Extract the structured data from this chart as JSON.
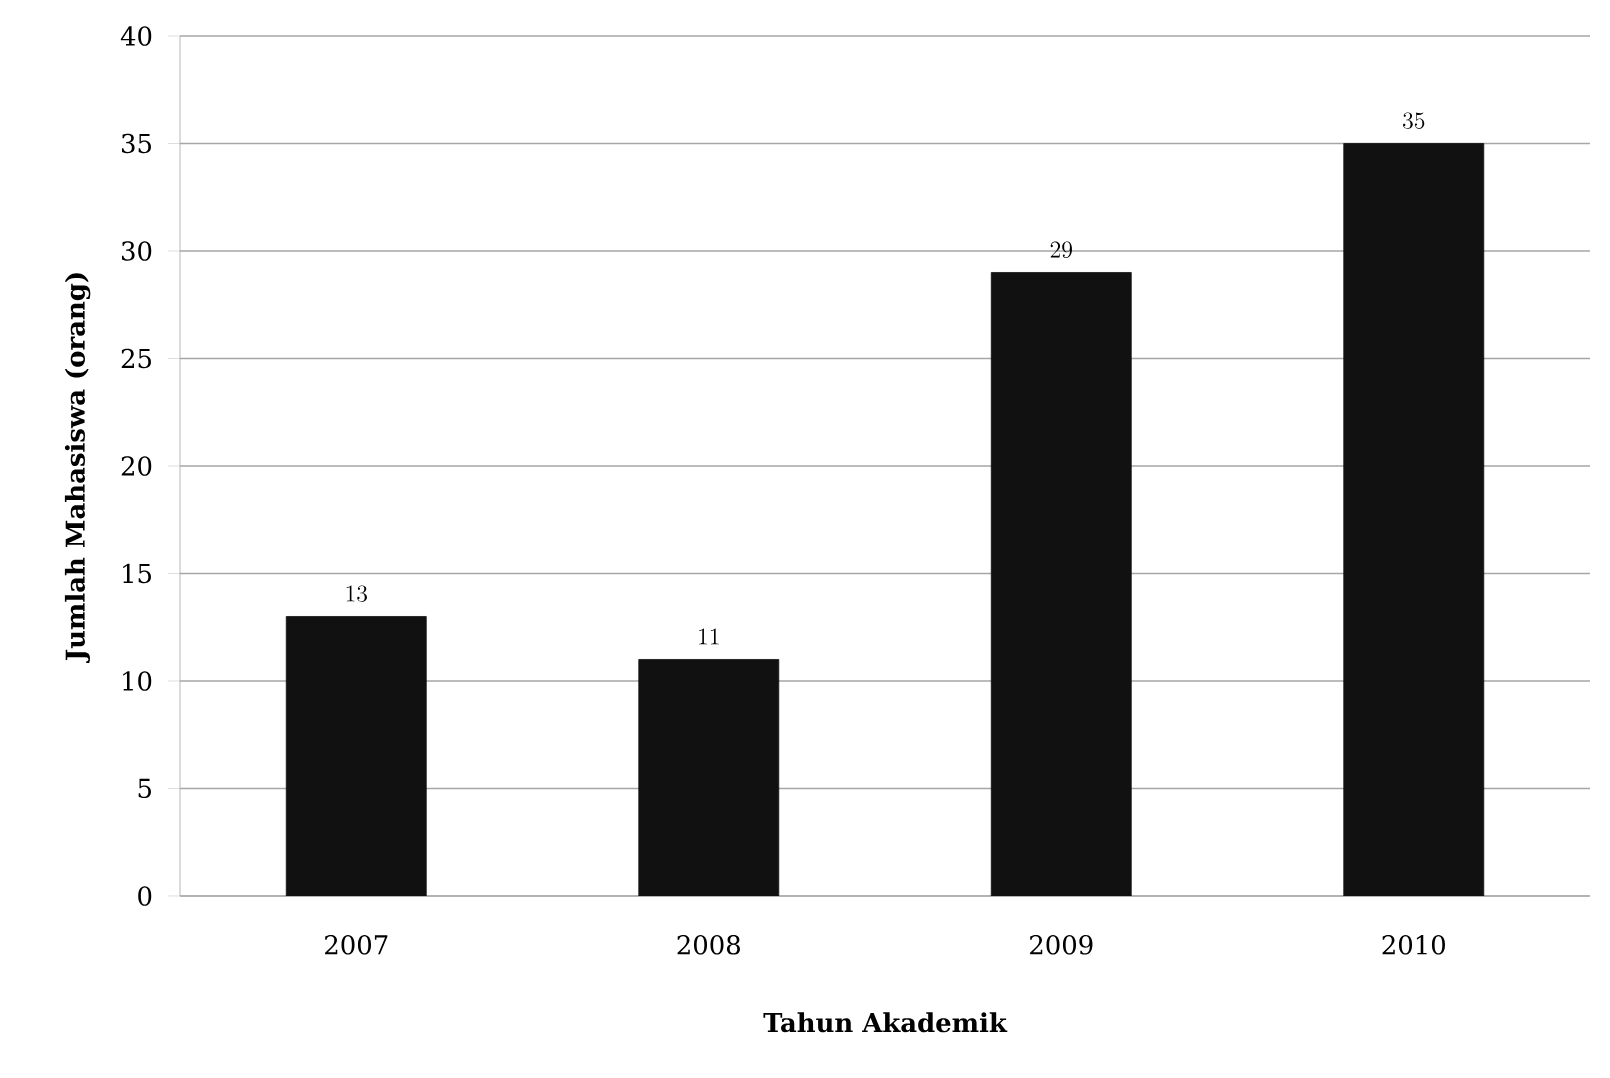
{
  "chart_data": {
    "type": "bar",
    "xlabel": "Tahun Akademik",
    "ylabel": "Jumlah Mahasiswa (orang)",
    "categories": [
      "2007",
      "2008",
      "2009",
      "2010"
    ],
    "values": [
      13,
      11,
      29,
      35
    ],
    "color": "#111111",
    "ylim": [
      0,
      40
    ],
    "yticks": [
      0,
      5,
      10,
      15,
      20,
      25,
      30,
      35,
      40
    ],
    "grid": "y",
    "data_labels": true
  }
}
